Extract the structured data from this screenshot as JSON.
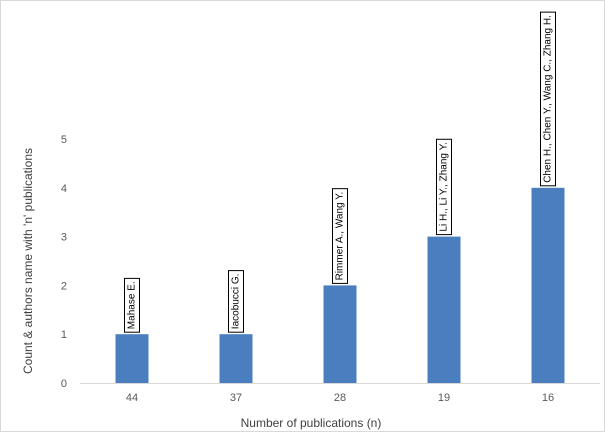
{
  "chart_data": {
    "type": "bar",
    "categories": [
      "44",
      "37",
      "28",
      "19",
      "16"
    ],
    "values": [
      1,
      1,
      2,
      3,
      4
    ],
    "data_labels": [
      "Mahase E.",
      "Iacobucci G.",
      "Rimmer A., Wang Y.",
      "Li H., Li Y., Zhang Y.",
      "Chen H., Chen Y., Wang C., Zhang H."
    ],
    "xlabel": "Number  of publications (n)",
    "ylabel": "Count & authors name with 'n' publications",
    "ylim": [
      0,
      5
    ],
    "yticks": [
      "0",
      "1",
      "2",
      "3",
      "4",
      "5"
    ],
    "grid": false,
    "legend": "none",
    "colors": {
      "bar": "#4a7ebf",
      "axis": "#d9d9d9",
      "label_border": "#000000"
    }
  }
}
